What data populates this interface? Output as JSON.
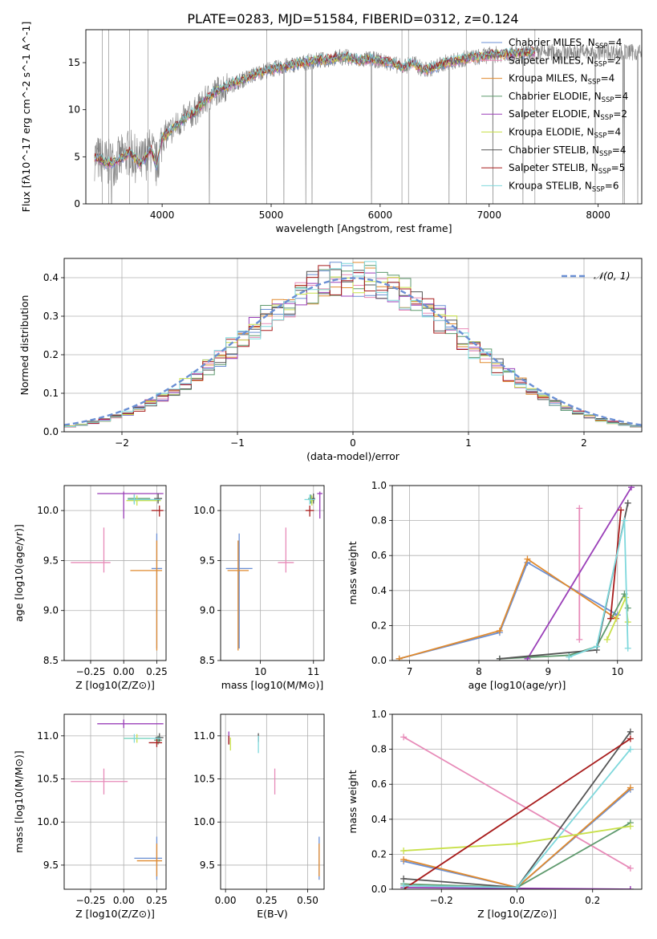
{
  "figure_title": "PLATE=0283, MJD=51584, FIBERID=0312, z=0.124",
  "series_colors": [
    "#6a8fd4",
    "#e78ab8",
    "#e08a2e",
    "#5f9a6e",
    "#9a3fb8",
    "#c8e04a",
    "#555555",
    "#a81c1c",
    "#7fd8dc"
  ],
  "chart_data": [
    {
      "id": "spectrum",
      "type": "line",
      "title": "PLATE=0283, MJD=51584, FIBERID=0312, z=0.124",
      "xlabel": "wavelength [Angstrom, rest frame]",
      "ylabel": "Flux [fλ10^-17 erg cm^-2 s^-1 A^-1]",
      "xlim": [
        3300,
        8400
      ],
      "ylim": [
        0,
        18.5
      ],
      "xticks": [
        4000,
        5000,
        6000,
        7000,
        8000
      ],
      "yticks": [
        0,
        5,
        10,
        15
      ],
      "grid": false,
      "legend_position": "right",
      "legend": [
        "Chabrier MILES, N_SSP=4",
        "Salpeter MILES, N_SSP=2",
        "Kroupa MILES, N_SSP=4",
        "Chabrier ELODIE, N_SSP=4",
        "Salpeter ELODIE, N_SSP=2",
        "Kroupa ELODIE, N_SSP=4",
        "Chabrier STELIB, N_SSP=4",
        "Salpeter STELIB, N_SSP=5",
        "Kroupa STELIB, N_SSP=6"
      ],
      "data_color": "#808080",
      "continuum": {
        "x": [
          3380,
          3500,
          3600,
          3700,
          3800,
          3900,
          3950,
          4000,
          4100,
          4200,
          4300,
          4400,
          4500,
          4600,
          4700,
          4800,
          4900,
          5000,
          5100,
          5200,
          5300,
          5400,
          5500,
          5600,
          5700,
          5800,
          5900,
          6000,
          6100,
          6200,
          6300,
          6400,
          6500,
          6600,
          6700,
          6800,
          6900,
          7000,
          7100,
          7200,
          7300,
          7420
        ],
        "y": [
          5.0,
          4.3,
          4.6,
          5.5,
          4.2,
          5.8,
          4.0,
          7.0,
          8.0,
          9.0,
          9.8,
          11.0,
          12.0,
          12.5,
          13.0,
          13.5,
          14.0,
          14.3,
          14.5,
          14.8,
          15.0,
          15.2,
          15.3,
          15.5,
          15.6,
          15.2,
          15.4,
          15.2,
          15.0,
          14.5,
          15.0,
          14.2,
          14.5,
          15.0,
          15.2,
          15.5,
          15.6,
          15.8,
          15.9,
          16.0,
          16.0,
          16.1
        ]
      },
      "model_x_range": [
        3380,
        7420
      ]
    },
    {
      "id": "residuals",
      "type": "histogram",
      "xlabel": "(data-model)/error",
      "ylabel": "Normed distribution",
      "xlim": [
        -2.5,
        2.5
      ],
      "ylim": [
        0,
        0.45
      ],
      "xticks": [
        -2,
        -1,
        0,
        1,
        2
      ],
      "yticks": [
        0.0,
        0.1,
        0.2,
        0.3,
        0.4
      ],
      "grid": true,
      "legend_position": "top-right",
      "legend": [
        "𝒩(0, 1)"
      ],
      "bin_width": 0.1,
      "reference_curve": "normal(0,1)",
      "reference_color": "#6a8fd4"
    },
    {
      "id": "age-vs-Z",
      "type": "scatter",
      "xlabel": "Z [log10(Z/Z⊙)]",
      "ylabel": "age [log10(age/yr)]",
      "xlim": [
        -0.45,
        0.32
      ],
      "ylim": [
        8.5,
        10.25
      ],
      "xticks": [
        -0.25,
        0.0,
        0.25
      ],
      "xtick_labels": [
        "−0.25",
        "0.00",
        "0.25"
      ],
      "yticks": [
        8.5,
        9.0,
        9.5,
        10.0
      ],
      "grid": true,
      "points": [
        {
          "x": 0.25,
          "xerr": [
            0.04,
            0.04
          ],
          "y": 9.42,
          "yerr": [
            0.8,
            0.35
          ],
          "c": 0
        },
        {
          "x": -0.15,
          "xerr": [
            0.25,
            0.05
          ],
          "y": 9.48,
          "yerr": [
            0.1,
            0.35
          ],
          "c": 1
        },
        {
          "x": 0.25,
          "xerr": [
            0.2,
            0.04
          ],
          "y": 9.4,
          "yerr": [
            0.8,
            0.3
          ],
          "c": 2
        },
        {
          "x": 0.08,
          "xerr": [
            0.05,
            0.12
          ],
          "y": 10.12,
          "yerr": [
            0.05,
            0.04
          ],
          "c": 3
        },
        {
          "x": 0.0,
          "xerr": [
            0.2,
            0.3
          ],
          "y": 10.17,
          "yerr": [
            0.25,
            0.02
          ],
          "c": 4
        },
        {
          "x": 0.1,
          "xerr": [
            0.08,
            0.18
          ],
          "y": 10.1,
          "yerr": [
            0.05,
            0.05
          ],
          "c": 5
        },
        {
          "x": 0.26,
          "xerr": [
            0.03,
            0.03
          ],
          "y": 10.12,
          "yerr": [
            0.05,
            0.05
          ],
          "c": 6
        },
        {
          "x": 0.27,
          "xerr": [
            0.06,
            0.03
          ],
          "y": 10.0,
          "yerr": [
            0.06,
            0.05
          ],
          "c": 7
        },
        {
          "x": 0.08,
          "xerr": [
            0.05,
            0.2
          ],
          "y": 10.11,
          "yerr": [
            0.05,
            0.05
          ],
          "c": 8
        }
      ]
    },
    {
      "id": "age-vs-mass",
      "type": "scatter",
      "xlabel": "mass [log10(M/M⊙)]",
      "ylabel": "",
      "xlim": [
        9.25,
        11.2
      ],
      "ylim": [
        8.5,
        10.25
      ],
      "xticks": [
        10,
        11
      ],
      "yticks": [
        8.5,
        9.0,
        9.5,
        10.0
      ],
      "grid": true,
      "points": [
        {
          "x": 9.6,
          "xerr": [
            0.25,
            0.25
          ],
          "y": 9.42,
          "yerr": [
            0.8,
            0.35
          ],
          "c": 0
        },
        {
          "x": 10.48,
          "xerr": [
            0.15,
            0.15
          ],
          "y": 9.48,
          "yerr": [
            0.1,
            0.35
          ],
          "c": 1
        },
        {
          "x": 9.58,
          "xerr": [
            0.2,
            0.2
          ],
          "y": 9.4,
          "yerr": [
            0.8,
            0.3
          ],
          "c": 2
        },
        {
          "x": 10.95,
          "xerr": [
            0.05,
            0.05
          ],
          "y": 10.12,
          "yerr": [
            0.05,
            0.04
          ],
          "c": 3
        },
        {
          "x": 11.12,
          "xerr": [
            0.05,
            0.05
          ],
          "y": 10.17,
          "yerr": [
            0.25,
            0.02
          ],
          "c": 4
        },
        {
          "x": 10.97,
          "xerr": [
            0.05,
            0.05
          ],
          "y": 10.1,
          "yerr": [
            0.05,
            0.05
          ],
          "c": 5
        },
        {
          "x": 11.0,
          "xerr": [
            0.03,
            0.03
          ],
          "y": 10.12,
          "yerr": [
            0.05,
            0.05
          ],
          "c": 6
        },
        {
          "x": 10.93,
          "xerr": [
            0.08,
            0.08
          ],
          "y": 10.0,
          "yerr": [
            0.06,
            0.05
          ],
          "c": 7
        },
        {
          "x": 10.93,
          "xerr": [
            0.1,
            0.1
          ],
          "y": 10.11,
          "yerr": [
            0.05,
            0.05
          ],
          "c": 8
        }
      ]
    },
    {
      "id": "weight-vs-age",
      "type": "line",
      "xlabel": "age [log10(age/yr)]",
      "ylabel": "mass weight",
      "xlim": [
        6.75,
        10.35
      ],
      "ylim": [
        0,
        1
      ],
      "xticks": [
        7,
        8,
        9,
        10
      ],
      "yticks": [
        0.0,
        0.2,
        0.4,
        0.6,
        0.8,
        1.0
      ],
      "grid": true,
      "series": [
        {
          "c": 0,
          "x": [
            6.85,
            8.3,
            8.7,
            10.0
          ],
          "y": [
            0.01,
            0.16,
            0.56,
            0.26
          ]
        },
        {
          "c": 1,
          "x": [
            9.45,
            9.45
          ],
          "y": [
            0.12,
            0.87
          ]
        },
        {
          "c": 2,
          "x": [
            6.85,
            8.3,
            8.7,
            9.98
          ],
          "y": [
            0.01,
            0.17,
            0.58,
            0.24
          ]
        },
        {
          "c": 3,
          "x": [
            8.3,
            9.3,
            9.7,
            10.1,
            10.15
          ],
          "y": [
            0.01,
            0.03,
            0.08,
            0.38,
            0.3
          ]
        },
        {
          "c": 4,
          "x": [
            8.7,
            10.2
          ],
          "y": [
            0.01,
            0.99
          ]
        },
        {
          "c": 5,
          "x": [
            9.85,
            10.12,
            10.15
          ],
          "y": [
            0.12,
            0.36,
            0.22
          ]
        },
        {
          "c": 6,
          "x": [
            8.3,
            9.7,
            10.15
          ],
          "y": [
            0.01,
            0.06,
            0.9
          ]
        },
        {
          "c": 7,
          "x": [
            9.9,
            10.05
          ],
          "y": [
            0.24,
            0.86
          ]
        },
        {
          "c": 8,
          "x": [
            9.3,
            9.7,
            10.1,
            10.15
          ],
          "y": [
            0.02,
            0.08,
            0.8,
            0.07
          ]
        }
      ]
    },
    {
      "id": "mass-vs-Z",
      "type": "scatter",
      "xlabel": "Z [log10(Z/Z⊙)]",
      "ylabel": "mass [log10(M/M⊙)]",
      "xlim": [
        -0.45,
        0.32
      ],
      "ylim": [
        9.22,
        11.25
      ],
      "xticks": [
        -0.25,
        0.0,
        0.25
      ],
      "xtick_labels": [
        "−0.25",
        "0.00",
        "0.25"
      ],
      "yticks": [
        9.5,
        10.0,
        10.5,
        11.0
      ],
      "grid": true,
      "points": [
        {
          "x": 0.25,
          "xerr": [
            0.17,
            0.04
          ],
          "y": 9.58,
          "yerr": [
            0.25,
            0.25
          ],
          "c": 0
        },
        {
          "x": -0.15,
          "xerr": [
            0.25,
            0.18
          ],
          "y": 10.47,
          "yerr": [
            0.15,
            0.15
          ],
          "c": 1
        },
        {
          "x": 0.25,
          "xerr": [
            0.15,
            0.04
          ],
          "y": 9.55,
          "yerr": [
            0.18,
            0.2
          ],
          "c": 2
        },
        {
          "x": 0.26,
          "xerr": [
            0.03,
            0.03
          ],
          "y": 10.95,
          "yerr": [
            0.05,
            0.05
          ],
          "c": 3
        },
        {
          "x": 0.0,
          "xerr": [
            0.2,
            0.3
          ],
          "y": 11.14,
          "yerr": [
            0.05,
            0.05
          ],
          "c": 4
        },
        {
          "x": 0.1,
          "xerr": [
            0.1,
            0.1
          ],
          "y": 10.97,
          "yerr": [
            0.05,
            0.05
          ],
          "c": 5
        },
        {
          "x": 0.27,
          "xerr": [
            0.03,
            0.03
          ],
          "y": 10.98,
          "yerr": [
            0.05,
            0.05
          ],
          "c": 6
        },
        {
          "x": 0.25,
          "xerr": [
            0.06,
            0.04
          ],
          "y": 10.92,
          "yerr": [
            0.05,
            0.05
          ],
          "c": 7
        },
        {
          "x": 0.08,
          "xerr": [
            0.08,
            0.2
          ],
          "y": 10.97,
          "yerr": [
            0.05,
            0.05
          ],
          "c": 8
        }
      ]
    },
    {
      "id": "mass-vs-ebv",
      "type": "scatter",
      "xlabel": "E(B-V)",
      "ylabel": "",
      "xlim": [
        -0.03,
        0.6
      ],
      "ylim": [
        9.22,
        11.25
      ],
      "xticks": [
        0.0,
        0.25,
        0.5
      ],
      "xtick_labels": [
        "0.00",
        "0.25",
        "0.50"
      ],
      "yticks": [
        9.5,
        10.0,
        10.5,
        11.0
      ],
      "grid": true,
      "points": [
        {
          "x": 0.57,
          "xerr": [
            0,
            0
          ],
          "y": 9.58,
          "yerr": [
            0.25,
            0.25
          ],
          "c": 0
        },
        {
          "x": 0.3,
          "xerr": [
            0,
            0
          ],
          "y": 10.47,
          "yerr": [
            0.15,
            0.15
          ],
          "c": 1
        },
        {
          "x": 0.57,
          "xerr": [
            0,
            0
          ],
          "y": 9.55,
          "yerr": [
            0.18,
            0.2
          ],
          "c": 2
        },
        {
          "x": 0.02,
          "xerr": [
            0,
            0
          ],
          "y": 10.95,
          "yerr": [
            0.05,
            0.05
          ],
          "c": 3
        },
        {
          "x": 0.02,
          "xerr": [
            0,
            0
          ],
          "y": 11.0,
          "yerr": [
            0.1,
            0.05
          ],
          "c": 4
        },
        {
          "x": 0.03,
          "xerr": [
            0,
            0
          ],
          "y": 10.93,
          "yerr": [
            0.1,
            0.05
          ],
          "c": 5
        },
        {
          "x": 0.2,
          "xerr": [
            0,
            0
          ],
          "y": 10.98,
          "yerr": [
            0.05,
            0.05
          ],
          "c": 6
        },
        {
          "x": 0.02,
          "xerr": [
            0,
            0
          ],
          "y": 10.95,
          "yerr": [
            0.05,
            0.05
          ],
          "c": 7
        },
        {
          "x": 0.2,
          "xerr": [
            0,
            0
          ],
          "y": 10.9,
          "yerr": [
            0.1,
            0.1
          ],
          "c": 8
        }
      ]
    },
    {
      "id": "weight-vs-Z",
      "type": "line",
      "xlabel": "Z [log10(Z/Z⊙)]",
      "ylabel": "mass weight",
      "xlim": [
        -0.33,
        0.33
      ],
      "ylim": [
        0,
        1
      ],
      "xticks": [
        -0.2,
        0.0,
        0.2
      ],
      "xtick_labels": [
        "−0.2",
        "0.0",
        "0.2"
      ],
      "yticks": [
        0.0,
        0.2,
        0.4,
        0.6,
        0.8,
        1.0
      ],
      "grid": true,
      "series": [
        {
          "c": 0,
          "x": [
            -0.3,
            0.0,
            0.3
          ],
          "y": [
            0.16,
            0.01,
            0.57
          ]
        },
        {
          "c": 1,
          "x": [
            -0.3,
            0.3
          ],
          "y": [
            0.87,
            0.12
          ]
        },
        {
          "c": 2,
          "x": [
            -0.3,
            0.0,
            0.3
          ],
          "y": [
            0.17,
            0.01,
            0.58
          ]
        },
        {
          "c": 3,
          "x": [
            -0.3,
            0.0,
            0.3
          ],
          "y": [
            0.03,
            0.01,
            0.38
          ]
        },
        {
          "c": 4,
          "x": [
            -0.3,
            0.3,
            0.3
          ],
          "y": [
            0.01,
            0.0,
            0.0
          ]
        },
        {
          "c": 5,
          "x": [
            -0.3,
            0.0,
            0.3
          ],
          "y": [
            0.22,
            0.26,
            0.36
          ]
        },
        {
          "c": 6,
          "x": [
            -0.3,
            0.0,
            0.3
          ],
          "y": [
            0.06,
            0.01,
            0.9
          ]
        },
        {
          "c": 7,
          "x": [
            -0.3,
            0.3
          ],
          "y": [
            0.0,
            0.86
          ]
        },
        {
          "c": 8,
          "x": [
            -0.3,
            0.0,
            0.3
          ],
          "y": [
            0.02,
            0.01,
            0.8
          ]
        }
      ]
    }
  ]
}
